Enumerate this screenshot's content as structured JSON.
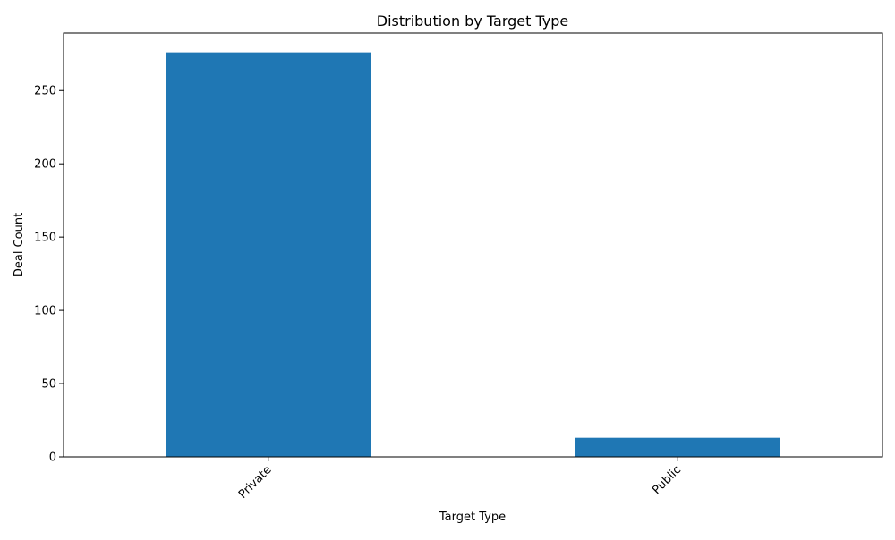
{
  "chart_data": {
    "type": "bar",
    "title": "Distribution by Target Type",
    "xlabel": "Target Type",
    "ylabel": "Deal Count",
    "categories": [
      "Private",
      "Public"
    ],
    "values": [
      276,
      13
    ],
    "ylim": [
      0,
      289.2
    ],
    "yticks": [
      0,
      50,
      100,
      150,
      200,
      250
    ],
    "bar_color": "#1f77b4",
    "grid": false,
    "legend": "none"
  }
}
